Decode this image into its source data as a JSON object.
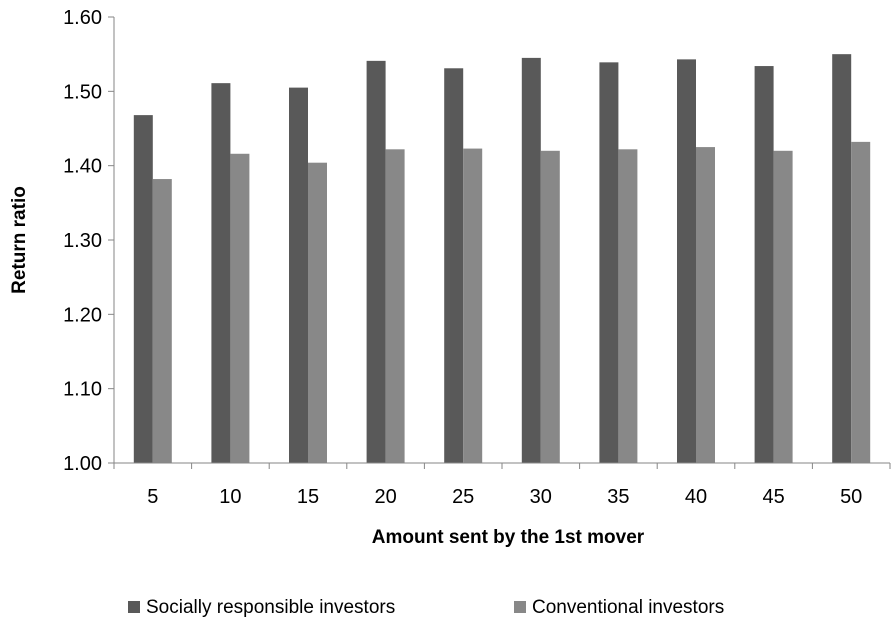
{
  "chart_data": {
    "type": "bar",
    "title": "",
    "xlabel": "Amount sent by the 1st mover",
    "ylabel": "Return ratio",
    "ylim": [
      1.0,
      1.6
    ],
    "yticks": [
      "1.00",
      "1.10",
      "1.20",
      "1.30",
      "1.40",
      "1.50",
      "1.60"
    ],
    "grid": false,
    "legend_position": "bottom",
    "categories": [
      "5",
      "10",
      "15",
      "20",
      "25",
      "30",
      "35",
      "40",
      "45",
      "50"
    ],
    "series": [
      {
        "name": "Socially responsible investors",
        "color": "#595959",
        "values": [
          1.468,
          1.511,
          1.505,
          1.541,
          1.531,
          1.545,
          1.539,
          1.543,
          1.534,
          1.55
        ]
      },
      {
        "name": "Conventional investors",
        "color": "#888888",
        "values": [
          1.382,
          1.416,
          1.404,
          1.422,
          1.423,
          1.42,
          1.422,
          1.425,
          1.42,
          1.432
        ]
      }
    ]
  }
}
